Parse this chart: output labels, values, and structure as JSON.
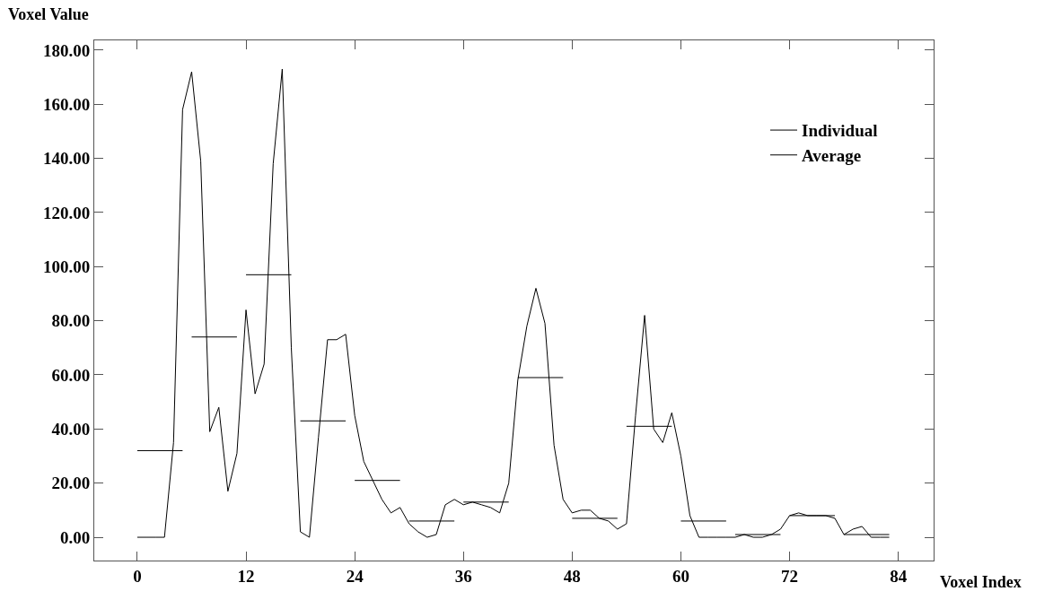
{
  "chart_data": {
    "type": "line",
    "xlabel": "Voxel Index",
    "ylabel": "Voxel Value",
    "x": [
      0,
      1,
      2,
      3,
      4,
      5,
      6,
      7,
      8,
      9,
      10,
      11,
      12,
      13,
      14,
      15,
      16,
      17,
      18,
      19,
      20,
      21,
      22,
      23,
      24,
      25,
      26,
      27,
      28,
      29,
      30,
      31,
      32,
      33,
      34,
      35,
      36,
      37,
      38,
      39,
      40,
      41,
      42,
      43,
      44,
      45,
      46,
      47,
      48,
      49,
      50,
      51,
      52,
      53,
      54,
      55,
      56,
      57,
      58,
      59,
      60,
      61,
      62,
      63,
      64,
      65,
      66,
      67,
      68,
      69,
      70,
      71,
      72,
      73,
      74,
      75,
      76,
      77,
      78,
      79,
      80,
      81,
      82,
      83
    ],
    "series": [
      {
        "name": "Individual",
        "color": "#000000",
        "values": [
          0,
          0,
          0,
          0,
          35,
          158,
          172,
          139,
          39,
          48,
          17,
          31,
          84,
          53,
          64,
          138,
          173,
          70,
          2,
          0,
          37,
          73,
          73,
          75,
          45,
          28,
          21,
          14,
          9,
          11,
          5,
          2,
          0,
          1,
          12,
          14,
          12,
          13,
          12,
          11,
          9,
          20,
          58,
          78,
          92,
          79,
          34,
          14,
          9,
          10,
          10,
          7,
          6,
          3,
          5,
          45,
          82,
          40,
          35,
          46,
          30,
          8,
          0,
          0,
          0,
          0,
          0,
          1,
          0,
          0,
          1,
          3,
          8,
          9,
          8,
          8,
          8,
          7,
          1,
          3,
          4,
          0,
          0,
          0
        ]
      },
      {
        "name": "Average",
        "color": "#000000",
        "x": [
          0,
          5,
          5.5,
          6,
          11,
          11.5,
          12,
          17,
          17.5,
          18,
          23,
          23.5,
          24,
          29,
          29.5,
          30,
          35,
          35.5,
          36,
          41,
          41.5,
          42,
          47,
          47.5,
          48,
          53,
          53.5,
          54,
          59,
          59.5,
          60,
          65,
          65.5,
          66,
          71,
          71.5,
          72,
          77,
          77.5,
          78,
          83
        ],
        "values": [
          32,
          32,
          null,
          74,
          74,
          null,
          97,
          97,
          null,
          43,
          43,
          null,
          21,
          21,
          null,
          6,
          6,
          null,
          13,
          13,
          null,
          59,
          59,
          null,
          7,
          7,
          null,
          41,
          41,
          null,
          6,
          6,
          null,
          1,
          1,
          null,
          8,
          8,
          null,
          1,
          1
        ]
      }
    ],
    "xlim": [
      -4.75,
      87.9
    ],
    "ylim": [
      -8.6,
      183.6
    ],
    "xticks": [
      0,
      12,
      24,
      36,
      48,
      60,
      72,
      84
    ],
    "yticks": [
      {
        "value": 0,
        "label": "0.00"
      },
      {
        "value": 20,
        "label": "20.00"
      },
      {
        "value": 40,
        "label": "40.00"
      },
      {
        "value": 60,
        "label": "60.00"
      },
      {
        "value": 80,
        "label": "80.00"
      },
      {
        "value": 100,
        "label": "100.00"
      },
      {
        "value": 120,
        "label": "120.00"
      },
      {
        "value": 140,
        "label": "140.00"
      },
      {
        "value": 160,
        "label": "160.00"
      },
      {
        "value": 180,
        "label": "180.00"
      }
    ],
    "legend": "top right",
    "marker": "none",
    "line_style": "solid"
  }
}
